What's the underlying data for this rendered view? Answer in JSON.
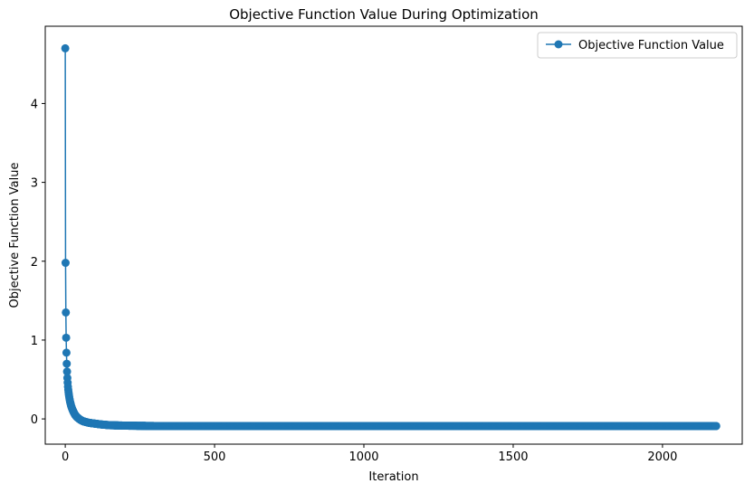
{
  "chart_data": {
    "type": "line",
    "title": "Objective Function Value During Optimization",
    "xlabel": "Iteration",
    "ylabel": "Objective Function Value",
    "xlim": [
      -67,
      2267
    ],
    "ylim": [
      -0.32,
      4.98
    ],
    "xticks": [
      0,
      500,
      1000,
      1500,
      2000
    ],
    "yticks": [
      0,
      1,
      2,
      3,
      4
    ],
    "grid": false,
    "legend_position": "top-right",
    "series": [
      {
        "name": "Objective Function Value",
        "color": "#1f77b4",
        "marker": "circle",
        "decay": {
          "start": 4.7,
          "floor": -0.09,
          "tau": 12,
          "x_max": 2180
        },
        "points": [
          [
            0,
            4.7
          ],
          [
            1,
            1.98
          ],
          [
            2,
            1.35
          ],
          [
            3,
            1.03
          ],
          [
            4,
            0.84
          ],
          [
            5,
            0.7
          ],
          [
            6,
            0.6
          ],
          [
            7,
            0.52
          ],
          [
            8,
            0.46
          ],
          [
            9,
            0.41
          ],
          [
            10,
            0.37
          ],
          [
            12,
            0.31
          ],
          [
            14,
            0.26
          ],
          [
            16,
            0.22
          ],
          [
            18,
            0.19
          ],
          [
            20,
            0.16
          ],
          [
            25,
            0.11
          ],
          [
            30,
            0.07
          ],
          [
            35,
            0.04
          ],
          [
            40,
            0.02
          ],
          [
            50,
            -0.01
          ],
          [
            60,
            -0.03
          ],
          [
            70,
            -0.04
          ],
          [
            80,
            -0.05
          ],
          [
            100,
            -0.06
          ],
          [
            120,
            -0.07
          ],
          [
            150,
            -0.08
          ],
          [
            200,
            -0.085
          ],
          [
            300,
            -0.09
          ],
          [
            2180,
            -0.09
          ]
        ]
      }
    ]
  }
}
